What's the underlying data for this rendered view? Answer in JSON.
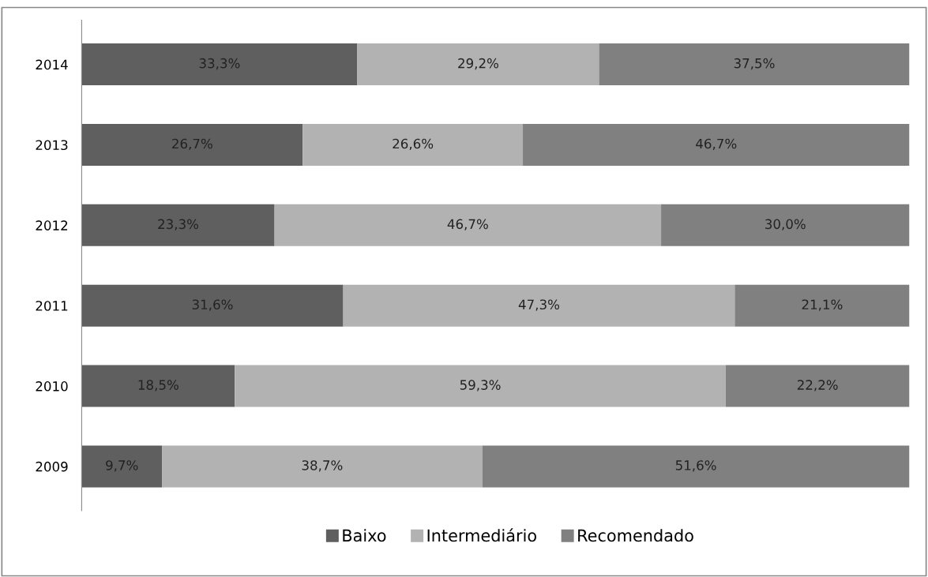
{
  "chart_data": {
    "type": "bar",
    "orientation": "horizontal",
    "stacked": true,
    "legend": "bottom",
    "grid": false,
    "categories": [
      "2014",
      "2013",
      "2012",
      "2011",
      "2010",
      "2009"
    ],
    "series": [
      {
        "name": "Baixo",
        "color": "#5f5f5f",
        "values": [
          33.3,
          26.7,
          23.3,
          31.6,
          18.5,
          9.7
        ],
        "value_labels": [
          "33,3%",
          "26,7%",
          "23,3%",
          "31,6%",
          "18,5%",
          "9,7%"
        ]
      },
      {
        "name": "Intermediário",
        "color": "#b2b2b2",
        "values": [
          29.2,
          26.6,
          46.7,
          47.3,
          59.3,
          38.7
        ],
        "value_labels": [
          "29,2%",
          "26,6%",
          "46,7%",
          "47,3%",
          "59,3%",
          "38,7%"
        ]
      },
      {
        "name": "Recomendado",
        "color": "#808080",
        "values": [
          37.5,
          46.7,
          30.0,
          21.1,
          22.2,
          51.6
        ],
        "value_labels": [
          "37,5%",
          "46,7%",
          "30,0%",
          "21,1%",
          "22,2%",
          "51,6%"
        ]
      }
    ]
  }
}
